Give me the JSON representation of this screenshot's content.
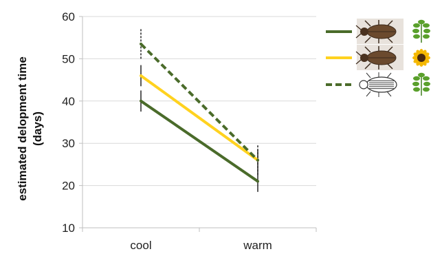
{
  "chart_data": {
    "type": "line",
    "categories": [
      "cool",
      "warm"
    ],
    "ylabel_line1": "estimated delopment time",
    "ylabel_line2": "(days)",
    "ylim": [
      10,
      60
    ],
    "yticks": [
      10,
      20,
      30,
      40,
      50,
      60
    ],
    "grid": true,
    "legend_position": "top-right",
    "series": [
      {
        "values": [
          40,
          21
        ],
        "error": [
          2.5,
          2.5
        ],
        "color": "#4a6b2a",
        "dash": "solid",
        "legend_beetle": "brown-beetle",
        "legend_plant": "leaf"
      },
      {
        "values": [
          46,
          26
        ],
        "error": [
          2.5,
          2.5
        ],
        "color": "#ffd21f",
        "dash": "solid",
        "legend_beetle": "brown-beetle",
        "legend_plant": "sunflower"
      },
      {
        "values": [
          53.5,
          26
        ],
        "error": [
          3.5,
          3.5
        ],
        "color": "#4a6b2a",
        "dash": "dashed",
        "legend_beetle": "striped-beetle-sketch",
        "legend_plant": "leaf"
      }
    ]
  }
}
